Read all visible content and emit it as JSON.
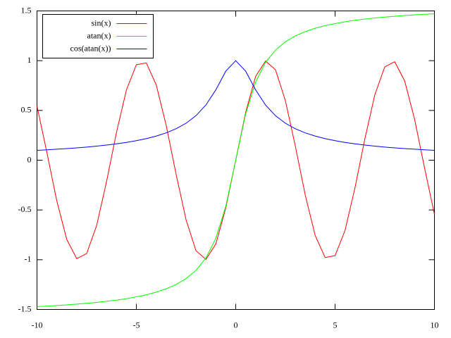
{
  "chart_data": {
    "type": "line",
    "x": [
      -10,
      -9.5,
      -9,
      -8.5,
      -8,
      -7.5,
      -7,
      -6.5,
      -6,
      -5.5,
      -5,
      -4.5,
      -4,
      -3.5,
      -3,
      -2.5,
      -2,
      -1.5,
      -1,
      -0.5,
      0,
      0.5,
      1,
      1.5,
      2,
      2.5,
      3,
      3.5,
      4,
      4.5,
      5,
      5.5,
      6,
      6.5,
      7,
      7.5,
      8,
      8.5,
      9,
      9.5,
      10
    ],
    "series": [
      {
        "name": "sin(x)",
        "color": "#ff0000",
        "values": [
          0.544,
          0.075,
          -0.412,
          -0.798,
          -0.989,
          -0.938,
          -0.657,
          -0.215,
          0.279,
          0.706,
          0.959,
          0.978,
          0.757,
          0.351,
          -0.141,
          -0.598,
          -0.909,
          -0.997,
          -0.841,
          -0.479,
          0,
          0.479,
          0.841,
          0.997,
          0.909,
          0.598,
          0.141,
          -0.351,
          -0.757,
          -0.978,
          -0.959,
          -0.706,
          -0.279,
          0.215,
          0.657,
          0.938,
          0.989,
          0.798,
          0.412,
          -0.075,
          -0.544
        ]
      },
      {
        "name": "atan(x)",
        "color": "#00ff00",
        "values": [
          -1.471,
          -1.466,
          -1.46,
          -1.454,
          -1.446,
          -1.438,
          -1.429,
          -1.418,
          -1.406,
          -1.391,
          -1.373,
          -1.352,
          -1.326,
          -1.292,
          -1.249,
          -1.19,
          -1.107,
          -0.983,
          -0.785,
          -0.464,
          0,
          0.464,
          0.785,
          0.983,
          1.107,
          1.19,
          1.249,
          1.292,
          1.326,
          1.352,
          1.373,
          1.391,
          1.406,
          1.418,
          1.429,
          1.438,
          1.446,
          1.454,
          1.46,
          1.466,
          1.471
        ]
      },
      {
        "name": "cos(atan(x))",
        "color": "#0000ff",
        "values": [
          0.0995,
          0.1047,
          0.1104,
          0.1168,
          0.124,
          0.1322,
          0.1414,
          0.1521,
          0.1644,
          0.1789,
          0.1961,
          0.2169,
          0.2425,
          0.2747,
          0.3162,
          0.3714,
          0.4472,
          0.5547,
          0.7071,
          0.8944,
          1,
          0.8944,
          0.7071,
          0.5547,
          0.4472,
          0.3714,
          0.3162,
          0.2747,
          0.2425,
          0.2169,
          0.1961,
          0.1789,
          0.1644,
          0.1521,
          0.1414,
          0.1322,
          0.124,
          0.1168,
          0.1104,
          0.1047,
          0.0995
        ]
      }
    ],
    "xlim": [
      -10,
      10
    ],
    "xticks": [
      -10,
      -5,
      0,
      5,
      10
    ],
    "ylim": [
      -1.5,
      1.5
    ],
    "yticks": [
      -1.5,
      -1,
      -0.5,
      0,
      0.5,
      1,
      1.5
    ],
    "grid": false,
    "legend": "top-left"
  }
}
